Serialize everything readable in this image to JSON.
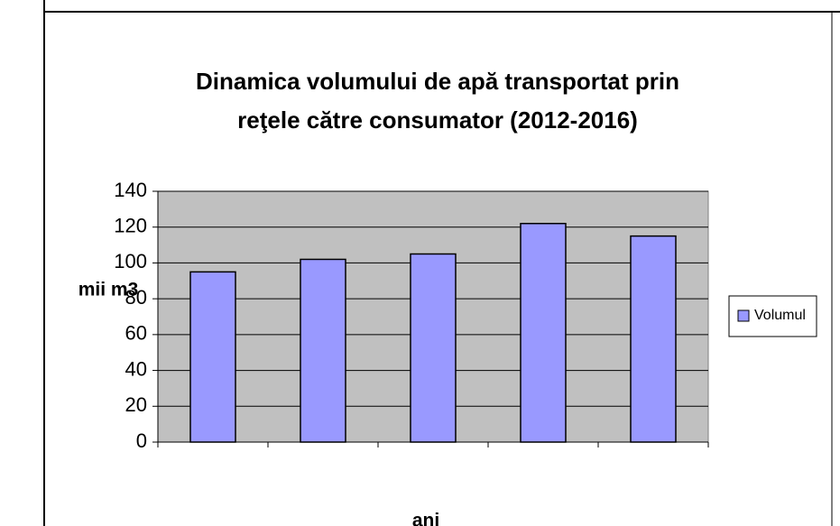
{
  "chart_data": {
    "type": "bar",
    "title": [
      "Dinamica volumului de apă transportat prin",
      "reţele către consumator (2012-2016)"
    ],
    "y_label": "mii m3",
    "x_label": "ani",
    "categories": [
      null,
      null,
      null,
      null,
      null
    ],
    "series": [
      {
        "name": "Volumul",
        "color": "#9999ff",
        "values": [
          95,
          102,
          105,
          122,
          115
        ]
      }
    ],
    "ylim": [
      0,
      140
    ],
    "yticks": [
      0,
      20,
      40,
      60,
      80,
      100,
      120,
      140
    ],
    "grid": true,
    "plot_background": "#c0c0c0",
    "legend": "right"
  }
}
